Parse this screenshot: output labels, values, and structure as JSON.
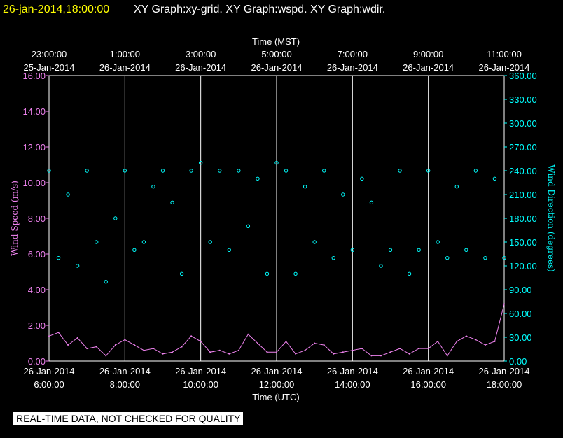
{
  "header": {
    "timestamp": "26-jan-2014,18:00:00",
    "graphs": "XY Graph:xy-grid.  XY Graph:wspd.  XY Graph:wdir.",
    "timestamp_color": "#ffff00",
    "graphs_color": "#ffffff"
  },
  "notice": "REAL-TIME DATA, NOT CHECKED FOR QUALITY",
  "colors": {
    "wspd": "#ee82ee",
    "wdir": "#00ffff",
    "axis": "#ffffff",
    "grid": "#ffffff"
  },
  "chart_data": {
    "type": "scatter",
    "x_top": {
      "title": "Time (MST)",
      "ticks": [
        {
          "time": "23:00:00",
          "date": "25-Jan-2014"
        },
        {
          "time": "1:00:00",
          "date": "26-Jan-2014"
        },
        {
          "time": "3:00:00",
          "date": "26-Jan-2014"
        },
        {
          "time": "5:00:00",
          "date": "26-Jan-2014"
        },
        {
          "time": "7:00:00",
          "date": "26-Jan-2014"
        },
        {
          "time": "9:00:00",
          "date": "26-Jan-2014"
        },
        {
          "time": "11:00:00",
          "date": "26-Jan-2014"
        }
      ]
    },
    "x_bottom": {
      "title": "Time (UTC)",
      "ticks": [
        {
          "date": "26-Jan-2014",
          "time": "6:00:00"
        },
        {
          "date": "26-Jan-2014",
          "time": "8:00:00"
        },
        {
          "date": "26-Jan-2014",
          "time": "10:00:00"
        },
        {
          "date": "26-Jan-2014",
          "time": "12:00:00"
        },
        {
          "date": "26-Jan-2014",
          "time": "14:00:00"
        },
        {
          "date": "26-Jan-2014",
          "time": "16:00:00"
        },
        {
          "date": "26-Jan-2014",
          "time": "18:00:00"
        }
      ]
    },
    "x_range_utc_hours": [
      6,
      18
    ],
    "y_left": {
      "label": "Wind Speed (m/s)",
      "range": [
        0,
        16
      ],
      "ticks": [
        "0.00",
        "2.00",
        "4.00",
        "6.00",
        "8.00",
        "10.00",
        "12.00",
        "14.00",
        "16.00"
      ]
    },
    "y_right": {
      "label": "Wind Direction (degrees)",
      "range": [
        0,
        360
      ],
      "ticks": [
        "0.00",
        "30.00",
        "60.00",
        "90.00",
        "120.00",
        "150.00",
        "180.00",
        "210.00",
        "240.00",
        "270.00",
        "300.00",
        "330.00",
        "360.00"
      ]
    },
    "grid": true,
    "series": [
      {
        "key": "wspd",
        "type": "line",
        "axis": "left",
        "x_utc_hours": [
          6.0,
          6.25,
          6.5,
          6.75,
          7.0,
          7.25,
          7.5,
          7.75,
          8.0,
          8.25,
          8.5,
          8.75,
          9.0,
          9.25,
          9.5,
          9.75,
          10.0,
          10.25,
          10.5,
          10.75,
          11.0,
          11.25,
          11.5,
          11.75,
          12.0,
          12.25,
          12.5,
          12.75,
          13.0,
          13.25,
          13.5,
          13.75,
          14.0,
          14.25,
          14.5,
          14.75,
          15.0,
          15.25,
          15.5,
          15.75,
          16.0,
          16.25,
          16.5,
          16.75,
          17.0,
          17.25,
          17.5,
          17.75,
          18.0
        ],
        "values": [
          1.4,
          1.6,
          0.9,
          1.3,
          0.7,
          0.8,
          0.3,
          0.9,
          1.2,
          0.9,
          0.6,
          0.7,
          0.4,
          0.5,
          0.8,
          1.4,
          1.1,
          0.5,
          0.6,
          0.4,
          0.6,
          1.5,
          1.0,
          0.5,
          0.5,
          1.1,
          0.4,
          0.6,
          1.0,
          0.9,
          0.4,
          0.5,
          0.6,
          0.7,
          0.3,
          0.3,
          0.5,
          0.7,
          0.4,
          0.7,
          0.7,
          1.1,
          0.3,
          1.1,
          1.4,
          1.2,
          0.9,
          1.1,
          3.2
        ]
      },
      {
        "key": "wdir",
        "type": "scatter",
        "axis": "right",
        "x_utc_hours": [
          6.0,
          6.25,
          6.5,
          6.75,
          7.0,
          7.25,
          7.5,
          7.75,
          8.0,
          8.25,
          8.5,
          8.75,
          9.0,
          9.25,
          9.5,
          9.75,
          10.0,
          10.25,
          10.5,
          10.75,
          11.0,
          11.25,
          11.5,
          11.75,
          12.0,
          12.25,
          12.5,
          12.75,
          13.0,
          13.25,
          13.5,
          13.75,
          14.0,
          14.25,
          14.5,
          14.75,
          15.0,
          15.25,
          15.5,
          15.75,
          16.0,
          16.25,
          16.5,
          16.75,
          17.0,
          17.25,
          17.5,
          17.75,
          18.0
        ],
        "values": [
          240,
          130,
          210,
          120,
          240,
          150,
          100,
          180,
          240,
          140,
          150,
          220,
          240,
          200,
          110,
          240,
          250,
          150,
          240,
          140,
          240,
          170,
          230,
          110,
          250,
          240,
          110,
          220,
          150,
          240,
          130,
          210,
          140,
          230,
          200,
          120,
          140,
          240,
          110,
          140,
          240,
          150,
          130,
          220,
          140,
          240,
          130,
          230,
          130
        ]
      }
    ]
  }
}
